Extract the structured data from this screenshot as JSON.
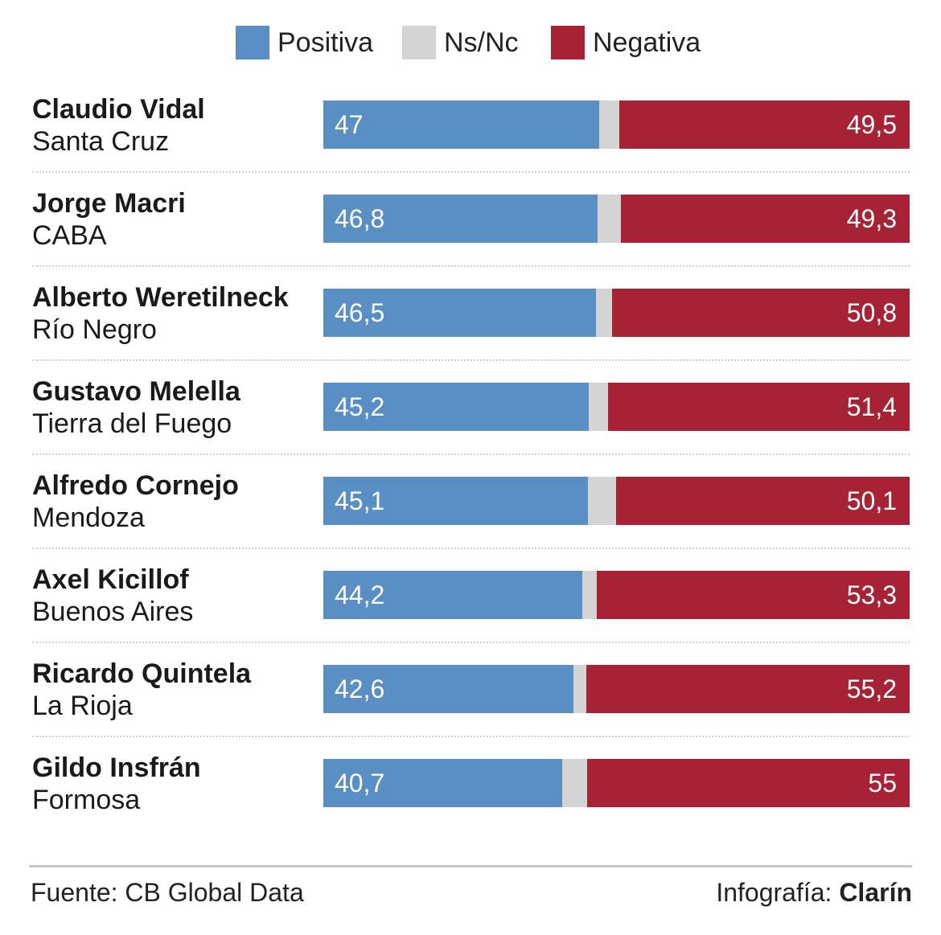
{
  "legend": {
    "positive": {
      "label": "Positiva",
      "color": "#5a8fc6"
    },
    "nsnc": {
      "label": "Ns/Nc",
      "color": "#d4d4d4"
    },
    "negative": {
      "label": "Negativa",
      "color": "#a62234"
    }
  },
  "chart_data": {
    "type": "bar",
    "stacked": true,
    "orientation": "horizontal",
    "title": "",
    "xlabel": "",
    "ylabel": "",
    "xlim": [
      0,
      100
    ],
    "grid": false,
    "legend_position": "top",
    "categories": [
      {
        "name": "Claudio Vidal",
        "province": "Santa Cruz"
      },
      {
        "name": "Jorge Macri",
        "province": "CABA"
      },
      {
        "name": "Alberto Weretilneck",
        "province": "Río Negro"
      },
      {
        "name": "Gustavo Melella",
        "province": "Tierra del Fuego"
      },
      {
        "name": "Alfredo Cornejo",
        "province": "Mendoza"
      },
      {
        "name": "Axel Kicillof",
        "province": "Buenos Aires"
      },
      {
        "name": "Ricardo Quintela",
        "province": "La Rioja"
      },
      {
        "name": "Gildo Insfrán",
        "province": "Formosa"
      }
    ],
    "series": [
      {
        "name": "Positiva",
        "values": [
          47,
          46.8,
          46.5,
          45.2,
          45.1,
          44.2,
          42.6,
          40.7
        ],
        "labels": [
          "47",
          "46,8",
          "46,5",
          "45,2",
          "45,1",
          "44,2",
          "42,6",
          "40,7"
        ]
      },
      {
        "name": "Ns/Nc",
        "values": [
          3.5,
          3.9,
          2.7,
          3.4,
          4.8,
          2.5,
          2.2,
          4.3
        ]
      },
      {
        "name": "Negativa",
        "values": [
          49.5,
          49.3,
          50.8,
          51.4,
          50.1,
          53.3,
          55.2,
          55
        ],
        "labels": [
          "49,5",
          "49,3",
          "50,8",
          "51,4",
          "50,1",
          "53,3",
          "55,2",
          "55"
        ]
      }
    ]
  },
  "footer": {
    "source": "Fuente: CB Global Data",
    "credit_prefix": "Infografía: ",
    "credit_brand": "Clarín"
  }
}
